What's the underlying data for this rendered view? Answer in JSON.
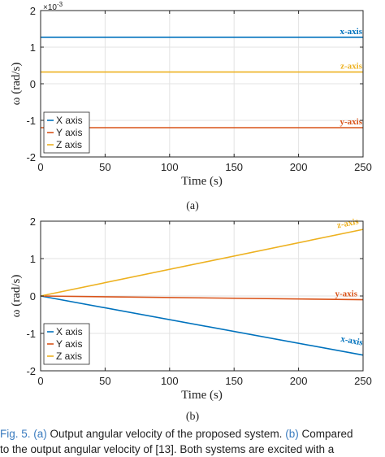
{
  "chart_data": [
    {
      "type": "line",
      "panel_label": "(a)",
      "exponent_label": "×10",
      "exponent_power": "-3",
      "xlabel": "Time (s)",
      "ylabel": "ω (rad/s)",
      "xlim": [
        0,
        250
      ],
      "ylim": [
        -2,
        2
      ],
      "xticks": [
        0,
        50,
        100,
        150,
        200,
        250
      ],
      "yticks": [
        -2,
        -1,
        0,
        1,
        2
      ],
      "grid": true,
      "legend_position": "bottom-left",
      "series": [
        {
          "name": "X axis",
          "annotation": "x-axis",
          "color": "#0072BD",
          "x": [
            0,
            250
          ],
          "values": [
            1.27,
            1.27
          ]
        },
        {
          "name": "Y axis",
          "annotation": "y-axis",
          "color": "#D95319",
          "x": [
            0,
            250
          ],
          "values": [
            -1.2,
            -1.2
          ]
        },
        {
          "name": "Z axis",
          "annotation": "z-axis",
          "color": "#EDB120",
          "x": [
            0,
            250
          ],
          "values": [
            0.32,
            0.32
          ]
        }
      ]
    },
    {
      "type": "line",
      "panel_label": "(b)",
      "xlabel": "Time (s)",
      "ylabel": "ω (rad/s)",
      "xlim": [
        0,
        250
      ],
      "ylim": [
        -2,
        2
      ],
      "xticks": [
        0,
        50,
        100,
        150,
        200,
        250
      ],
      "yticks": [
        -2,
        -1,
        0,
        1,
        2
      ],
      "grid": true,
      "legend_position": "bottom-left",
      "series": [
        {
          "name": "X axis",
          "annotation": "x-axis",
          "color": "#0072BD",
          "x": [
            0,
            250
          ],
          "values": [
            0,
            -1.58
          ]
        },
        {
          "name": "Y axis",
          "annotation": "y-axis",
          "color": "#D95319",
          "x": [
            0,
            250
          ],
          "values": [
            0,
            -0.1
          ]
        },
        {
          "name": "Z axis",
          "annotation": "z-axis",
          "color": "#EDB120",
          "x": [
            0,
            250
          ],
          "values": [
            0,
            1.78
          ]
        }
      ]
    }
  ],
  "caption": {
    "fig": "Fig. 5.",
    "a_ref": "(a)",
    "a_text": " Output angular velocity of the proposed system. ",
    "b_ref": "(b)",
    "b_text": " Compared",
    "line2": "to the output angular velocity of [13]. Both systems are excited with a"
  }
}
